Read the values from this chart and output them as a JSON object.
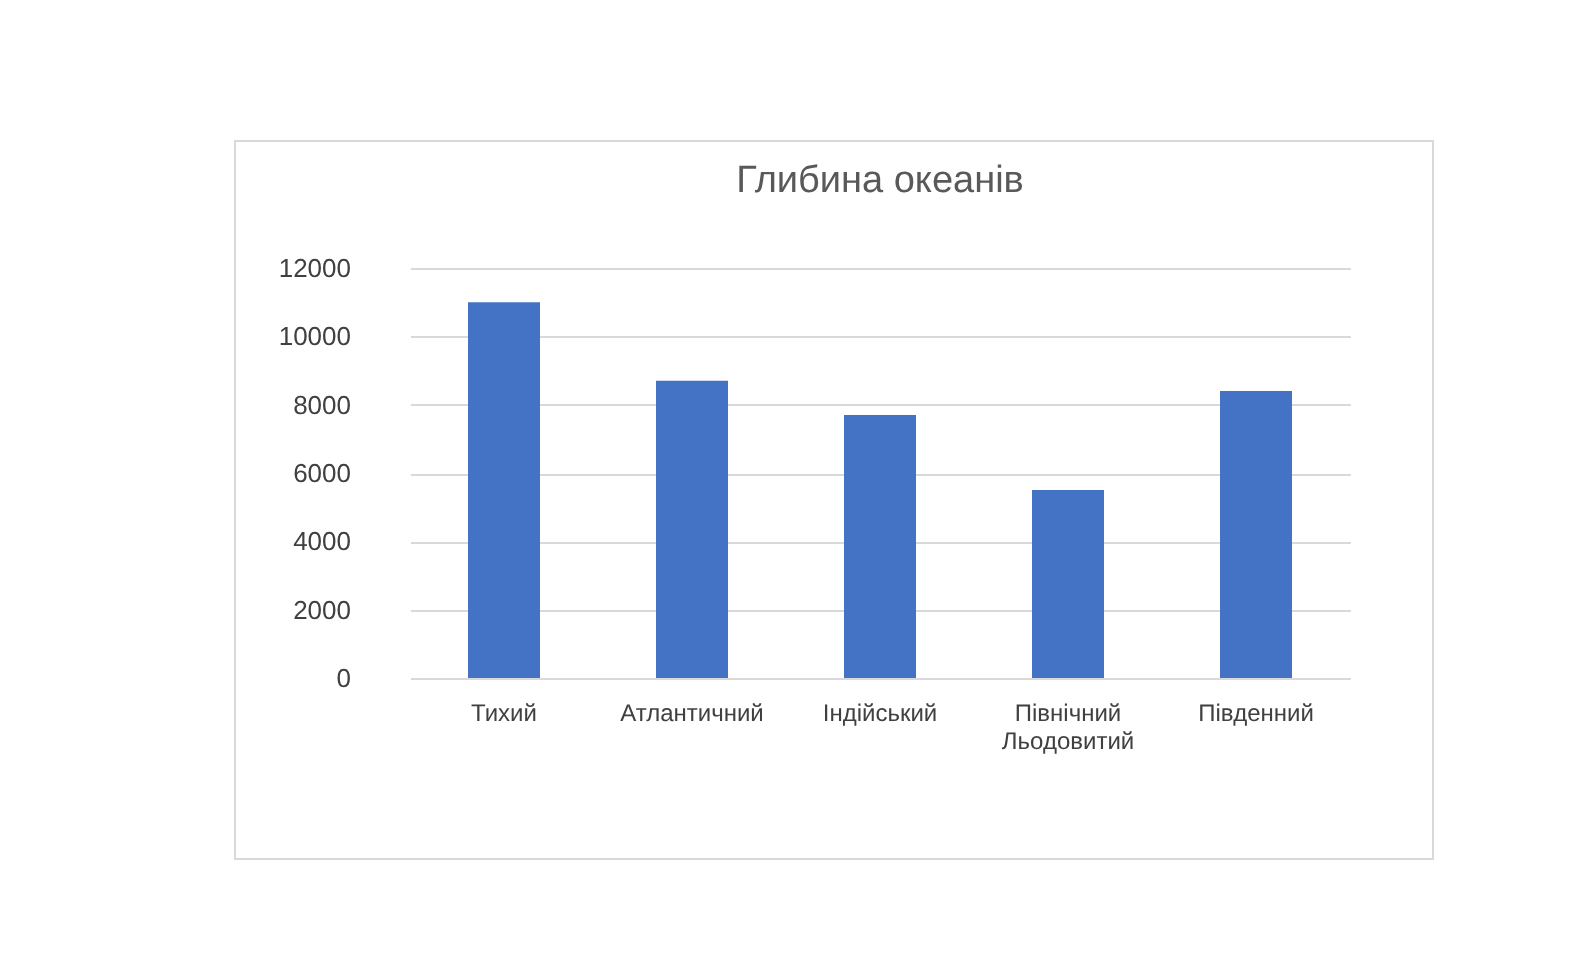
{
  "chart_data": {
    "type": "bar",
    "title": "Глибина океанів",
    "categories": [
      "Тихий",
      "Атлантичний",
      "Індійський",
      "Північний Льодовитий",
      "Південний"
    ],
    "values": [
      11000,
      8700,
      7700,
      5500,
      8400
    ],
    "color": "#4472c4",
    "ylim": [
      0,
      12000
    ],
    "yticks": [
      0,
      2000,
      4000,
      6000,
      8000,
      10000,
      12000
    ],
    "grid": "y"
  }
}
